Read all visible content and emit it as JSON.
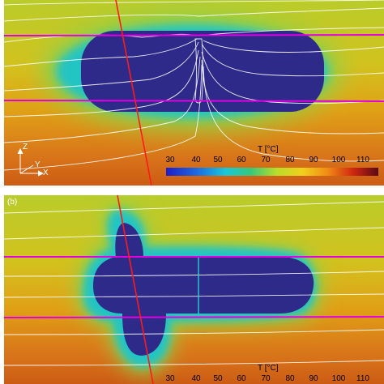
{
  "panels": [
    {
      "id": "a",
      "label": ""
    },
    {
      "id": "b",
      "label": "(b)"
    }
  ],
  "colorbar": {
    "title": "T [°C]",
    "ticks": [
      "30",
      "40",
      "50",
      "60",
      "70",
      "80",
      "90",
      "100",
      "110"
    ]
  },
  "axes": {
    "z": "Z",
    "y": "Y",
    "x": "X"
  },
  "colors": {
    "cold": "#2e2a8a",
    "mid": "#c8cf2a",
    "warm": "#cf5a12",
    "isotherm": "#ffffff",
    "horizon": "#e000e0",
    "well": "#ff1a1a"
  }
}
